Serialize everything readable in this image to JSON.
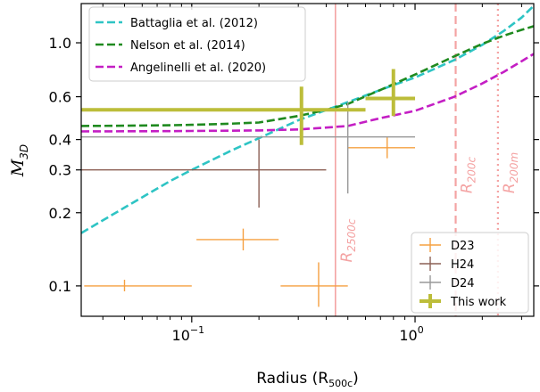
{
  "chart_data": {
    "type": "scatter",
    "xscale": "log",
    "yscale": "log",
    "xlim": [
      0.032,
      3.4
    ],
    "ylim": [
      0.075,
      1.45
    ],
    "xlabel": "Radius (R$_{500c}$)",
    "xlabel_main": "Radius (R",
    "xlabel_sub": "500c",
    "xlabel_close": ")",
    "ylabel_main": "M",
    "ylabel_sub": "3D",
    "xticks": [
      {
        "value": 0.1,
        "base": "10",
        "exp": "−1"
      },
      {
        "value": 1.0,
        "base": "10",
        "exp": "0"
      }
    ],
    "yticks": [
      {
        "value": 0.1,
        "label": "0.1"
      },
      {
        "value": 0.2,
        "label": "0.2"
      },
      {
        "value": 0.3,
        "label": "0.3"
      },
      {
        "value": 0.4,
        "label": "0.4"
      },
      {
        "value": 0.6,
        "label": "0.6"
      },
      {
        "value": 1.0,
        "label": "1.0"
      }
    ],
    "curves": [
      {
        "name": "Battaglia et al. (2012)",
        "color": "#2ec4c4",
        "points": [
          [
            0.032,
            0.165
          ],
          [
            0.05,
            0.21
          ],
          [
            0.08,
            0.27
          ],
          [
            0.1,
            0.3
          ],
          [
            0.15,
            0.36
          ],
          [
            0.2,
            0.405
          ],
          [
            0.3,
            0.48
          ],
          [
            0.5,
            0.57
          ],
          [
            0.8,
            0.67
          ],
          [
            1.0,
            0.72
          ],
          [
            1.5,
            0.85
          ],
          [
            2.0,
            0.98
          ],
          [
            2.5,
            1.12
          ],
          [
            3.0,
            1.27
          ],
          [
            3.4,
            1.42
          ]
        ]
      },
      {
        "name": "Nelson et al. (2014)",
        "color": "#1f8a1f",
        "points": [
          [
            0.032,
            0.455
          ],
          [
            0.05,
            0.456
          ],
          [
            0.08,
            0.458
          ],
          [
            0.1,
            0.46
          ],
          [
            0.15,
            0.465
          ],
          [
            0.2,
            0.47
          ],
          [
            0.3,
            0.5
          ],
          [
            0.4,
            0.53
          ],
          [
            0.5,
            0.56
          ],
          [
            0.7,
            0.64
          ],
          [
            1.0,
            0.74
          ],
          [
            1.5,
            0.88
          ],
          [
            2.0,
            0.99
          ],
          [
            2.5,
            1.07
          ],
          [
            3.0,
            1.13
          ],
          [
            3.4,
            1.17
          ]
        ]
      },
      {
        "name": "Angelinelli et al. (2020)",
        "color": "#c41ec4",
        "points": [
          [
            0.032,
            0.432
          ],
          [
            0.08,
            0.433
          ],
          [
            0.1,
            0.434
          ],
          [
            0.2,
            0.436
          ],
          [
            0.3,
            0.44
          ],
          [
            0.4,
            0.448
          ],
          [
            0.5,
            0.455
          ],
          [
            0.7,
            0.49
          ],
          [
            1.0,
            0.525
          ],
          [
            1.5,
            0.6
          ],
          [
            2.0,
            0.68
          ],
          [
            2.5,
            0.76
          ],
          [
            3.0,
            0.84
          ],
          [
            3.4,
            0.9
          ]
        ]
      }
    ],
    "vlines": [
      {
        "value": 0.44,
        "label_main": "R",
        "label_sub": "2500c",
        "style": "solid",
        "label_y": 0.125
      },
      {
        "value": 1.52,
        "label_main": "R",
        "label_sub": "200c",
        "style": "dashed",
        "label_y": 0.24
      },
      {
        "value": 2.35,
        "label_main": "R",
        "label_sub": "200m",
        "style": "dotted",
        "label_y": 0.24
      }
    ],
    "series": [
      {
        "name": "D23",
        "color": "#f5a040",
        "points": [
          {
            "x": 0.05,
            "y": 0.1,
            "xerr": [
              0.033,
              0.1
            ],
            "yerr": [
              0.095,
              0.106
            ]
          },
          {
            "x": 0.17,
            "y": 0.155,
            "xerr": [
              0.105,
              0.245
            ],
            "yerr": [
              0.14,
              0.172
            ]
          },
          {
            "x": 0.37,
            "y": 0.1,
            "xerr": [
              0.25,
              0.5
            ],
            "yerr": [
              0.082,
              0.125
            ]
          },
          {
            "x": 0.75,
            "y": 0.37,
            "xerr": [
              0.5,
              1.0
            ],
            "yerr": [
              0.335,
              0.41
            ]
          }
        ]
      },
      {
        "name": "H24",
        "color": "#8c6055",
        "points": [
          {
            "x": 0.2,
            "y": 0.3,
            "xerr": [
              0.032,
              0.4
            ],
            "yerr": [
              0.21,
              0.4
            ]
          }
        ]
      },
      {
        "name": "D24",
        "color": "#999999",
        "points": [
          {
            "x": 0.5,
            "y": 0.41,
            "xerr": [
              0.032,
              1.0
            ],
            "yerr": [
              0.24,
              0.57
            ]
          }
        ]
      },
      {
        "name": "This work",
        "color": "#bcbd3a",
        "points": [
          {
            "x": 0.31,
            "y": 0.53,
            "xerr": [
              0.032,
              0.6
            ],
            "yerr": [
              0.38,
              0.66
            ]
          },
          {
            "x": 0.8,
            "y": 0.59,
            "xerr": [
              0.6,
              1.0
            ],
            "yerr": [
              0.5,
              0.78
            ]
          }
        ]
      }
    ],
    "legend_top": {
      "placement": "top-left"
    },
    "legend_bottom": {
      "placement": "bottom-right"
    }
  }
}
